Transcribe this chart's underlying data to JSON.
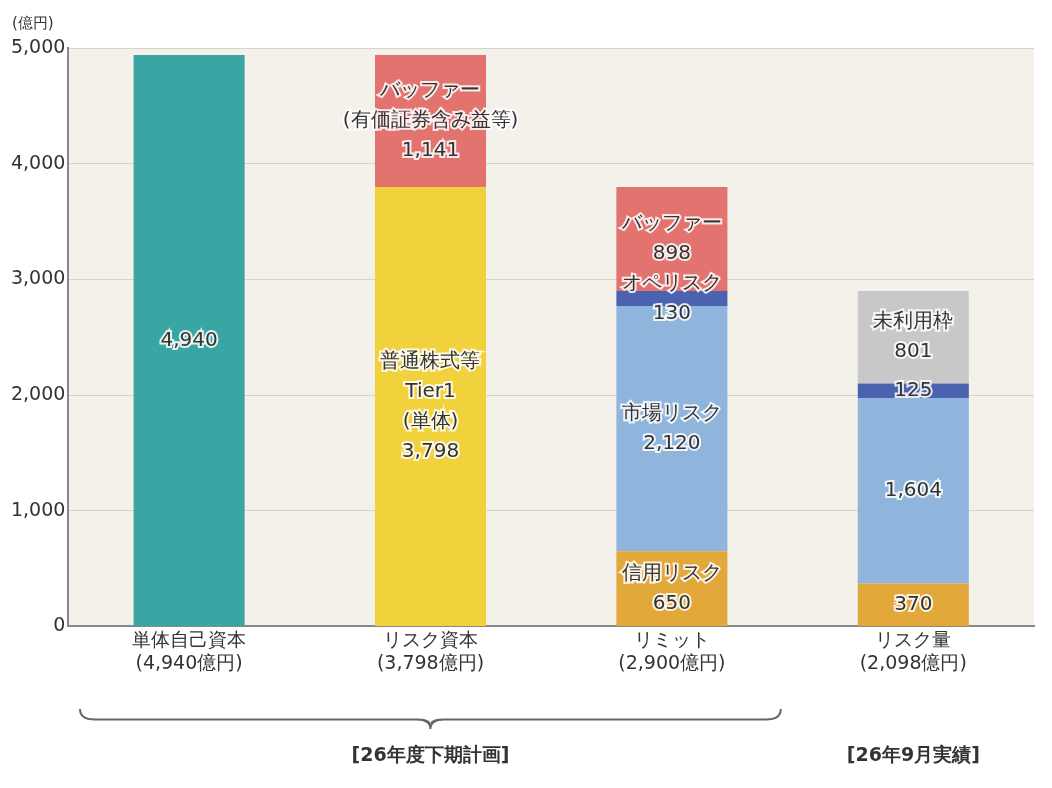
{
  "chart_data": {
    "type": "bar",
    "stacked": true,
    "ylabel": "(億円)",
    "categories": [
      "単体自己資本\n(4,940億円)",
      "リスク資本\n(3,798億円)",
      "リミット\n(2,900億円)",
      "リスク量\n(2,098億円)"
    ],
    "series": [
      {
        "color": "#3aa6a3",
        "values": [
          4940,
          null,
          null,
          null
        ],
        "value_labels": [
          "4,940",
          null,
          null,
          null
        ]
      },
      {
        "color": "#f2d23c",
        "values": [
          null,
          3798,
          null,
          null
        ],
        "value_labels": [
          null,
          "普通株式等\nTier1\n(単体)\n3,798",
          null,
          null
        ]
      },
      {
        "color": "#e3a83a",
        "values": [
          null,
          null,
          650,
          370
        ],
        "value_labels": [
          null,
          null,
          "信用リスク\n650",
          "370"
        ]
      },
      {
        "color": "#8fb5dc",
        "values": [
          null,
          null,
          2120,
          1604
        ],
        "value_labels": [
          null,
          null,
          "市場リスク\n2,120",
          "1,604"
        ]
      },
      {
        "color": "#4a62b0",
        "values": [
          null,
          null,
          130,
          125
        ],
        "value_labels": [
          null,
          null,
          "オペリスク\n130",
          "125"
        ]
      },
      {
        "color": "#e2736e",
        "values": [
          null,
          1141,
          898,
          null
        ],
        "value_labels": [
          null,
          "バッファー\n(有価証券含み益等)\n1,141",
          "バッファー\n898",
          null
        ]
      },
      {
        "color": "#c8c8c8",
        "values": [
          null,
          null,
          null,
          801
        ],
        "value_labels": [
          null,
          null,
          null,
          "未利用枠\n801"
        ]
      }
    ],
    "ylim": [
      0,
      5000
    ],
    "yticks": [
      0,
      {
        "value": 1000,
        "label": "1,000"
      },
      {
        "value": 2000,
        "label": "2,000"
      },
      {
        "value": 3000,
        "label": "3,000"
      },
      {
        "value": 4000,
        "label": "4,000"
      },
      {
        "value": 5000,
        "label": "5,000"
      }
    ],
    "grid": "y",
    "legend": false,
    "annotations": [
      "[26年度下期計画]",
      "[26年9月実績]"
    ]
  }
}
